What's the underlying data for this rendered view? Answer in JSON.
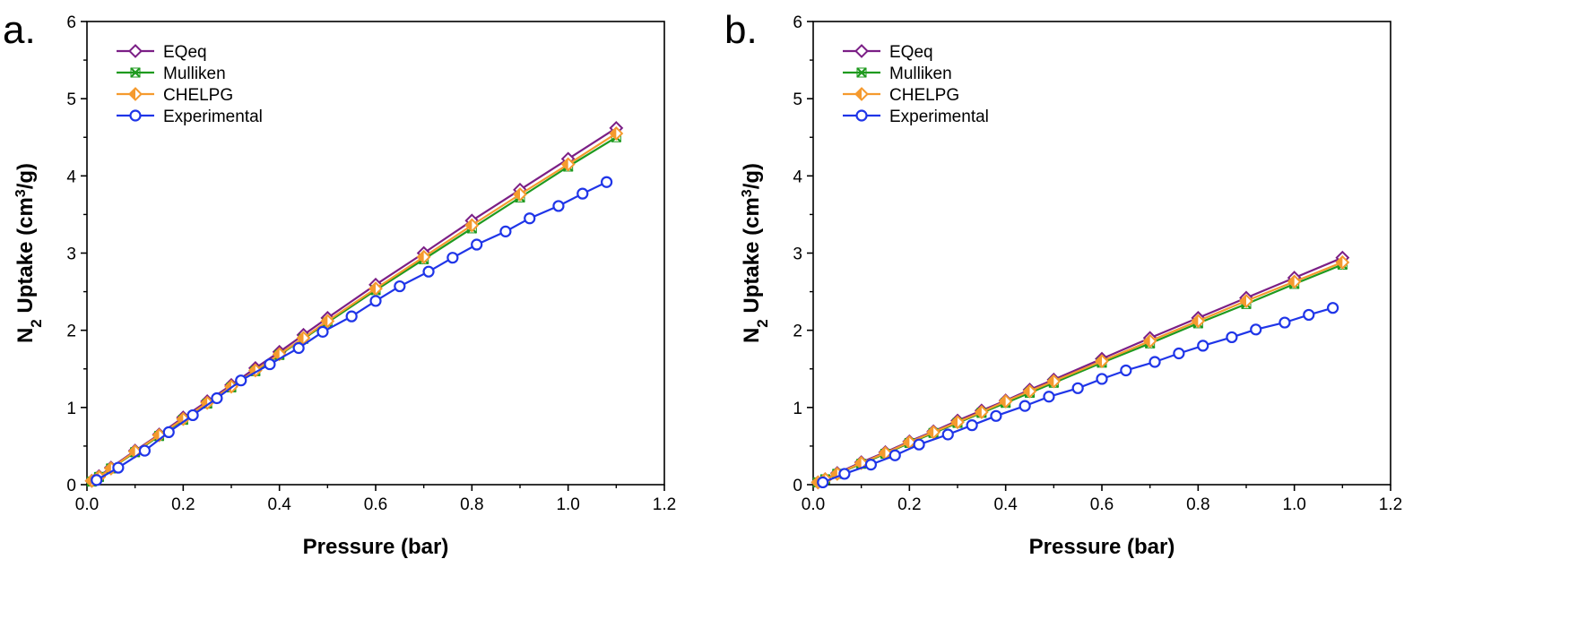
{
  "chart_data": [
    {
      "type": "line",
      "panel_label": "a.",
      "xlabel": "Pressure (bar)",
      "ylabel": "N2 Uptake (cm3/g)",
      "ylabel_parts": [
        "N",
        "2",
        " Uptake (cm",
        "3",
        "/g)"
      ],
      "xlim": [
        0,
        1.2
      ],
      "ylim": [
        0,
        6
      ],
      "xticks": [
        "0.0",
        "0.2",
        "0.4",
        "0.6",
        "0.8",
        "1.0",
        "1.2"
      ],
      "yticks": [
        "0",
        "1",
        "2",
        "3",
        "4",
        "5",
        "6"
      ],
      "legend_position": "top-left",
      "series": [
        {
          "name": "EQeq",
          "color": "#7b1f86",
          "marker": "diamond",
          "x": [
            0.01,
            0.025,
            0.05,
            0.1,
            0.15,
            0.2,
            0.25,
            0.3,
            0.35,
            0.4,
            0.45,
            0.5,
            0.6,
            0.7,
            0.8,
            0.9,
            1.0,
            1.1
          ],
          "y": [
            0.05,
            0.11,
            0.22,
            0.44,
            0.65,
            0.87,
            1.08,
            1.29,
            1.51,
            1.72,
            1.94,
            2.16,
            2.59,
            3.0,
            3.42,
            3.82,
            4.22,
            4.62
          ]
        },
        {
          "name": "Mulliken",
          "color": "#1e9a1e",
          "marker": "xcross",
          "x": [
            0.01,
            0.025,
            0.05,
            0.1,
            0.15,
            0.2,
            0.25,
            0.3,
            0.35,
            0.4,
            0.45,
            0.5,
            0.6,
            0.7,
            0.8,
            0.9,
            1.0,
            1.1
          ],
          "y": [
            0.04,
            0.1,
            0.21,
            0.42,
            0.63,
            0.84,
            1.05,
            1.26,
            1.47,
            1.68,
            1.89,
            2.1,
            2.52,
            2.92,
            3.32,
            3.72,
            4.12,
            4.5
          ]
        },
        {
          "name": "CHELPG",
          "color": "#f59a2e",
          "marker": "halfdiamond",
          "x": [
            0.01,
            0.025,
            0.05,
            0.1,
            0.15,
            0.2,
            0.25,
            0.3,
            0.35,
            0.4,
            0.45,
            0.5,
            0.6,
            0.7,
            0.8,
            0.9,
            1.0,
            1.1
          ],
          "y": [
            0.05,
            0.1,
            0.21,
            0.43,
            0.64,
            0.85,
            1.06,
            1.27,
            1.48,
            1.69,
            1.9,
            2.12,
            2.54,
            2.95,
            3.36,
            3.76,
            4.15,
            4.55
          ]
        },
        {
          "name": "Experimental",
          "color": "#1f35e8",
          "marker": "circle",
          "x": [
            0.02,
            0.065,
            0.12,
            0.17,
            0.22,
            0.27,
            0.32,
            0.38,
            0.44,
            0.49,
            0.55,
            0.6,
            0.65,
            0.71,
            0.76,
            0.81,
            0.87,
            0.92,
            0.98,
            1.03,
            1.08
          ],
          "y": [
            0.06,
            0.22,
            0.44,
            0.68,
            0.9,
            1.12,
            1.35,
            1.56,
            1.77,
            1.98,
            2.18,
            2.38,
            2.57,
            2.76,
            2.94,
            3.11,
            3.28,
            3.45,
            3.61,
            3.77,
            3.92
          ]
        }
      ]
    },
    {
      "type": "line",
      "panel_label": "b.",
      "xlabel": "Pressure (bar)",
      "ylabel": "N2 Uptake (cm3/g)",
      "ylabel_parts": [
        "N",
        "2",
        " Uptake (cm",
        "3",
        "/g)"
      ],
      "xlim": [
        0,
        1.2
      ],
      "ylim": [
        0,
        6
      ],
      "xticks": [
        "0.0",
        "0.2",
        "0.4",
        "0.6",
        "0.8",
        "1.0",
        "1.2"
      ],
      "yticks": [
        "0",
        "1",
        "2",
        "3",
        "4",
        "5",
        "6"
      ],
      "legend_position": "top-left",
      "series": [
        {
          "name": "EQeq",
          "color": "#7b1f86",
          "marker": "diamond",
          "x": [
            0.01,
            0.025,
            0.05,
            0.1,
            0.15,
            0.2,
            0.25,
            0.3,
            0.35,
            0.4,
            0.45,
            0.5,
            0.6,
            0.7,
            0.8,
            0.9,
            1.0,
            1.1
          ],
          "y": [
            0.03,
            0.07,
            0.15,
            0.29,
            0.42,
            0.56,
            0.69,
            0.83,
            0.96,
            1.09,
            1.23,
            1.36,
            1.63,
            1.9,
            2.16,
            2.42,
            2.68,
            2.94
          ]
        },
        {
          "name": "Mulliken",
          "color": "#1e9a1e",
          "marker": "xcross",
          "x": [
            0.01,
            0.025,
            0.05,
            0.1,
            0.15,
            0.2,
            0.25,
            0.3,
            0.35,
            0.4,
            0.45,
            0.5,
            0.6,
            0.7,
            0.8,
            0.9,
            1.0,
            1.1
          ],
          "y": [
            0.03,
            0.07,
            0.14,
            0.27,
            0.4,
            0.54,
            0.67,
            0.8,
            0.93,
            1.06,
            1.19,
            1.32,
            1.58,
            1.83,
            2.09,
            2.34,
            2.6,
            2.85
          ]
        },
        {
          "name": "CHELPG",
          "color": "#f59a2e",
          "marker": "halfdiamond",
          "x": [
            0.01,
            0.025,
            0.05,
            0.1,
            0.15,
            0.2,
            0.25,
            0.3,
            0.35,
            0.4,
            0.45,
            0.5,
            0.6,
            0.7,
            0.8,
            0.9,
            1.0,
            1.1
          ],
          "y": [
            0.03,
            0.07,
            0.14,
            0.28,
            0.41,
            0.55,
            0.68,
            0.81,
            0.94,
            1.08,
            1.21,
            1.34,
            1.6,
            1.86,
            2.12,
            2.38,
            2.63,
            2.88
          ]
        },
        {
          "name": "Experimental",
          "color": "#1f35e8",
          "marker": "circle",
          "x": [
            0.02,
            0.065,
            0.12,
            0.17,
            0.22,
            0.28,
            0.33,
            0.38,
            0.44,
            0.49,
            0.55,
            0.6,
            0.65,
            0.71,
            0.76,
            0.81,
            0.87,
            0.92,
            0.98,
            1.03,
            1.08
          ],
          "y": [
            0.03,
            0.14,
            0.26,
            0.38,
            0.52,
            0.65,
            0.77,
            0.89,
            1.02,
            1.14,
            1.25,
            1.37,
            1.48,
            1.59,
            1.7,
            1.8,
            1.91,
            2.01,
            2.1,
            2.2,
            2.29
          ]
        }
      ]
    }
  ]
}
